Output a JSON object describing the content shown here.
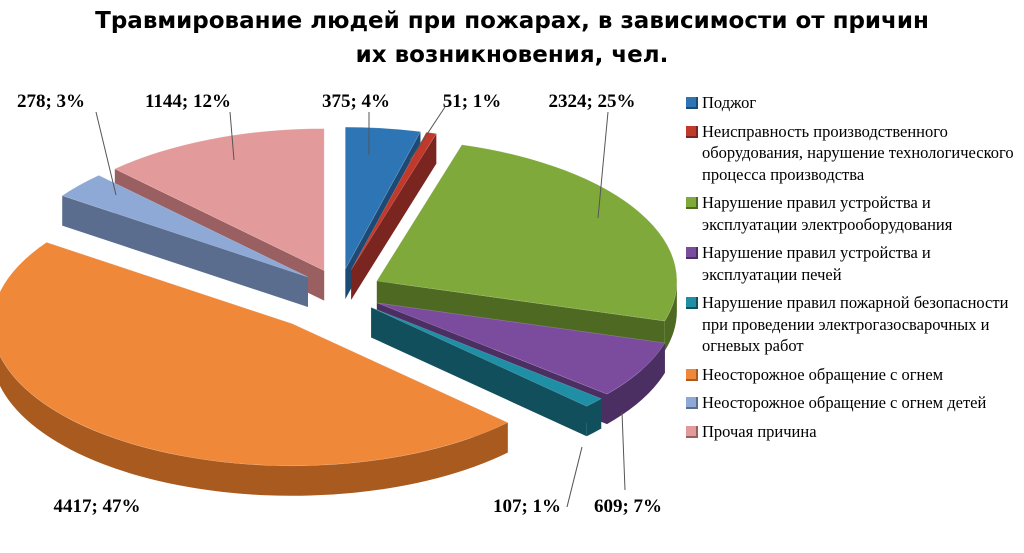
{
  "chart_data": {
    "type": "pie",
    "title": "Травмирование людей при пожарах, в зависимости от причин их возникновения, чел.",
    "title_lines": [
      "Травмирование людей при пожарах, в зависимости от причин",
      "их возникновения, чел."
    ],
    "legend_position": "right",
    "style": "3d-exploded",
    "categories": [
      "Поджог",
      "Неисправность производственного оборудования, нарушение технологического процесса производства",
      "Нарушение правил устройства и эксплуатации электрооборудования",
      "Нарушение правил устройства и эксплуатации печей",
      "Нарушение правил пожарной безопасности при проведении электрогазосварочных и огневых работ",
      "Неосторожное обращение с огнем",
      "Неосторожное обращение с огнем детей",
      "Прочая причина"
    ],
    "values": [
      375,
      51,
      2324,
      609,
      107,
      4417,
      278,
      1144
    ],
    "data_labels": [
      "375; 4%",
      "51; 1%",
      "2324; 25%",
      "609; 7%",
      "107; 1%",
      "4417; 47%",
      "278; 3%",
      "1144; 12%"
    ],
    "colors": [
      "#2E75B6",
      "#C0392B",
      "#7FA93A",
      "#7B4C9E",
      "#1E8FA5",
      "#F0883A",
      "#8FA9D6",
      "#E39A9B"
    ],
    "side_colors": [
      "#1D4A74",
      "#7A2520",
      "#4E6A22",
      "#4B2E62",
      "#124F5C",
      "#A85A1F",
      "#5A6D8F",
      "#9A5F60"
    ]
  },
  "legend": {
    "items": [
      {
        "label": "Поджог",
        "icon": "legend-swatch-blue"
      },
      {
        "label": "Неисправность производственного оборудования, нарушение технологического процесса производства",
        "icon": "legend-swatch-red"
      },
      {
        "label": "Нарушение правил устройства и эксплуатации электрооборудования",
        "icon": "legend-swatch-green"
      },
      {
        "label": "Нарушение правил устройства и эксплуатации печей",
        "icon": "legend-swatch-purple"
      },
      {
        "label": "Нарушение правил пожарной безопасности при проведении электрогазосварочных и огневых работ",
        "icon": "legend-swatch-teal"
      },
      {
        "label": "Неосторожное обращение с огнем",
        "icon": "legend-swatch-orange"
      },
      {
        "label": "Неосторожное обращение с огнем детей",
        "icon": "legend-swatch-lightblue"
      },
      {
        "label": "Прочая причина",
        "icon": "legend-swatch-pink"
      }
    ]
  }
}
